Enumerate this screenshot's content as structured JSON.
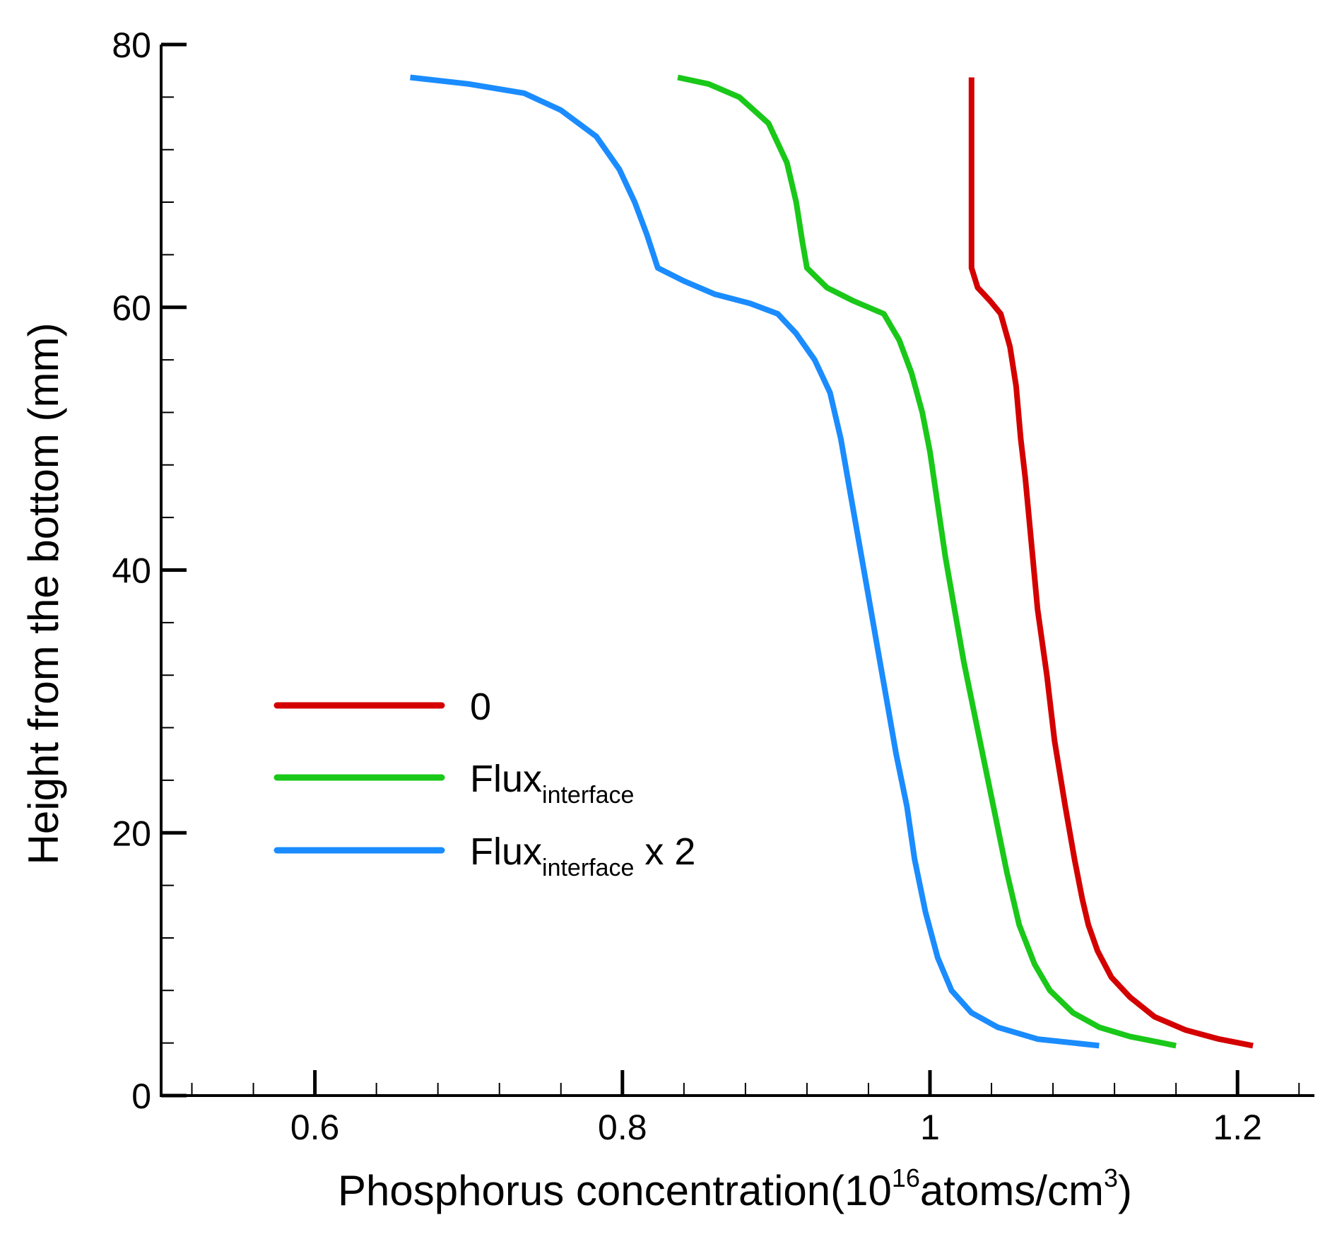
{
  "chart_data": {
    "type": "line",
    "title": "",
    "xlabel": {
      "prefix": "Phosphorus concentration(10",
      "sup1": "16",
      "middle": "atoms/cm",
      "sup2": "3",
      "suffix": ")"
    },
    "ylabel": "Height from the bottom (mm)",
    "xlim": [
      0.5,
      1.25
    ],
    "ylim": [
      0,
      80
    ],
    "x_ticks": [
      {
        "value": 0.6,
        "label": "0.6"
      },
      {
        "value": 0.8,
        "label": "0.8"
      },
      {
        "value": 1.0,
        "label": "1"
      },
      {
        "value": 1.2,
        "label": "1.2"
      }
    ],
    "y_ticks": [
      {
        "value": 0,
        "label": "0"
      },
      {
        "value": 20,
        "label": "20"
      },
      {
        "value": 40,
        "label": "40"
      },
      {
        "value": 60,
        "label": "60"
      },
      {
        "value": 80,
        "label": "80"
      }
    ],
    "x_minor_step": 0.04,
    "y_minor_step": 4,
    "grid": false,
    "legend_position": "center-left",
    "series": [
      {
        "name": "0",
        "label_main": "0",
        "label_sub": "",
        "label_suffix": "",
        "color": "#d40000",
        "points": [
          [
            1.027,
            77.5
          ],
          [
            1.027,
            70
          ],
          [
            1.027,
            63
          ],
          [
            1.031,
            61.5
          ],
          [
            1.039,
            60.5
          ],
          [
            1.046,
            59.5
          ],
          [
            1.052,
            57
          ],
          [
            1.056,
            54
          ],
          [
            1.059,
            50
          ],
          [
            1.062,
            47
          ],
          [
            1.066,
            42
          ],
          [
            1.07,
            37
          ],
          [
            1.076,
            32
          ],
          [
            1.081,
            27
          ],
          [
            1.088,
            22
          ],
          [
            1.094,
            18
          ],
          [
            1.099,
            15
          ],
          [
            1.103,
            13
          ],
          [
            1.109,
            11
          ],
          [
            1.118,
            9
          ],
          [
            1.13,
            7.5
          ],
          [
            1.146,
            6
          ],
          [
            1.166,
            5
          ],
          [
            1.188,
            4.3
          ],
          [
            1.21,
            3.8
          ]
        ]
      },
      {
        "name": "Flux_interface",
        "label_main": "Flux",
        "label_sub": "interface",
        "label_suffix": "",
        "color": "#19c819",
        "points": [
          [
            0.836,
            77.5
          ],
          [
            0.856,
            77
          ],
          [
            0.876,
            76
          ],
          [
            0.895,
            74
          ],
          [
            0.907,
            71
          ],
          [
            0.913,
            68
          ],
          [
            0.917,
            65
          ],
          [
            0.92,
            63
          ],
          [
            0.933,
            61.5
          ],
          [
            0.95,
            60.5
          ],
          [
            0.97,
            59.5
          ],
          [
            0.98,
            57.5
          ],
          [
            0.988,
            55
          ],
          [
            0.995,
            52
          ],
          [
            1.0,
            49
          ],
          [
            1.005,
            45
          ],
          [
            1.01,
            41
          ],
          [
            1.016,
            37
          ],
          [
            1.022,
            33
          ],
          [
            1.029,
            29
          ],
          [
            1.036,
            25
          ],
          [
            1.043,
            21
          ],
          [
            1.05,
            17
          ],
          [
            1.058,
            13
          ],
          [
            1.068,
            10
          ],
          [
            1.078,
            8
          ],
          [
            1.093,
            6.3
          ],
          [
            1.11,
            5.2
          ],
          [
            1.13,
            4.5
          ],
          [
            1.16,
            3.8
          ]
        ]
      },
      {
        "name": "Flux_interface x 2",
        "label_main": "Flux",
        "label_sub": "interface",
        "label_suffix": " x 2",
        "color": "#1a8cff",
        "points": [
          [
            0.662,
            77.5
          ],
          [
            0.7,
            77
          ],
          [
            0.736,
            76.3
          ],
          [
            0.76,
            75
          ],
          [
            0.783,
            73
          ],
          [
            0.798,
            70.5
          ],
          [
            0.808,
            68
          ],
          [
            0.816,
            65.5
          ],
          [
            0.823,
            63
          ],
          [
            0.84,
            62
          ],
          [
            0.86,
            61
          ],
          [
            0.883,
            60.3
          ],
          [
            0.901,
            59.5
          ],
          [
            0.913,
            58
          ],
          [
            0.925,
            56
          ],
          [
            0.935,
            53.5
          ],
          [
            0.942,
            50
          ],
          [
            0.948,
            46
          ],
          [
            0.954,
            42
          ],
          [
            0.96,
            38
          ],
          [
            0.966,
            34
          ],
          [
            0.972,
            30
          ],
          [
            0.978,
            26
          ],
          [
            0.985,
            22
          ],
          [
            0.99,
            18
          ],
          [
            0.997,
            14
          ],
          [
            1.005,
            10.5
          ],
          [
            1.014,
            8
          ],
          [
            1.027,
            6.3
          ],
          [
            1.044,
            5.2
          ],
          [
            1.07,
            4.3
          ],
          [
            1.11,
            3.8
          ]
        ]
      }
    ]
  }
}
